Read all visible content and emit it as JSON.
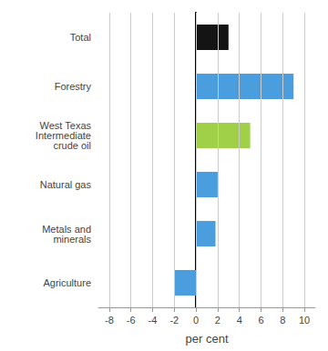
{
  "chart_data": {
    "type": "bar",
    "orientation": "horizontal",
    "categories": [
      "Agriculture",
      "Metals and\nminerals",
      "Natural gas",
      "West Texas\nIntermediate\ncrude oil",
      "Forestry",
      "Total"
    ],
    "values": [
      -2.0,
      1.8,
      2.0,
      5.0,
      9.0,
      3.0
    ],
    "colors": [
      "#4a9ede",
      "#4a9ede",
      "#4a9ede",
      "#9fd048",
      "#4a9ede",
      "#141414"
    ],
    "xlabel": "per cent",
    "xlim": [
      -9,
      11
    ],
    "xticks": [
      -8,
      -6,
      -4,
      -2,
      0,
      2,
      4,
      6,
      8,
      10
    ],
    "grid": true
  }
}
